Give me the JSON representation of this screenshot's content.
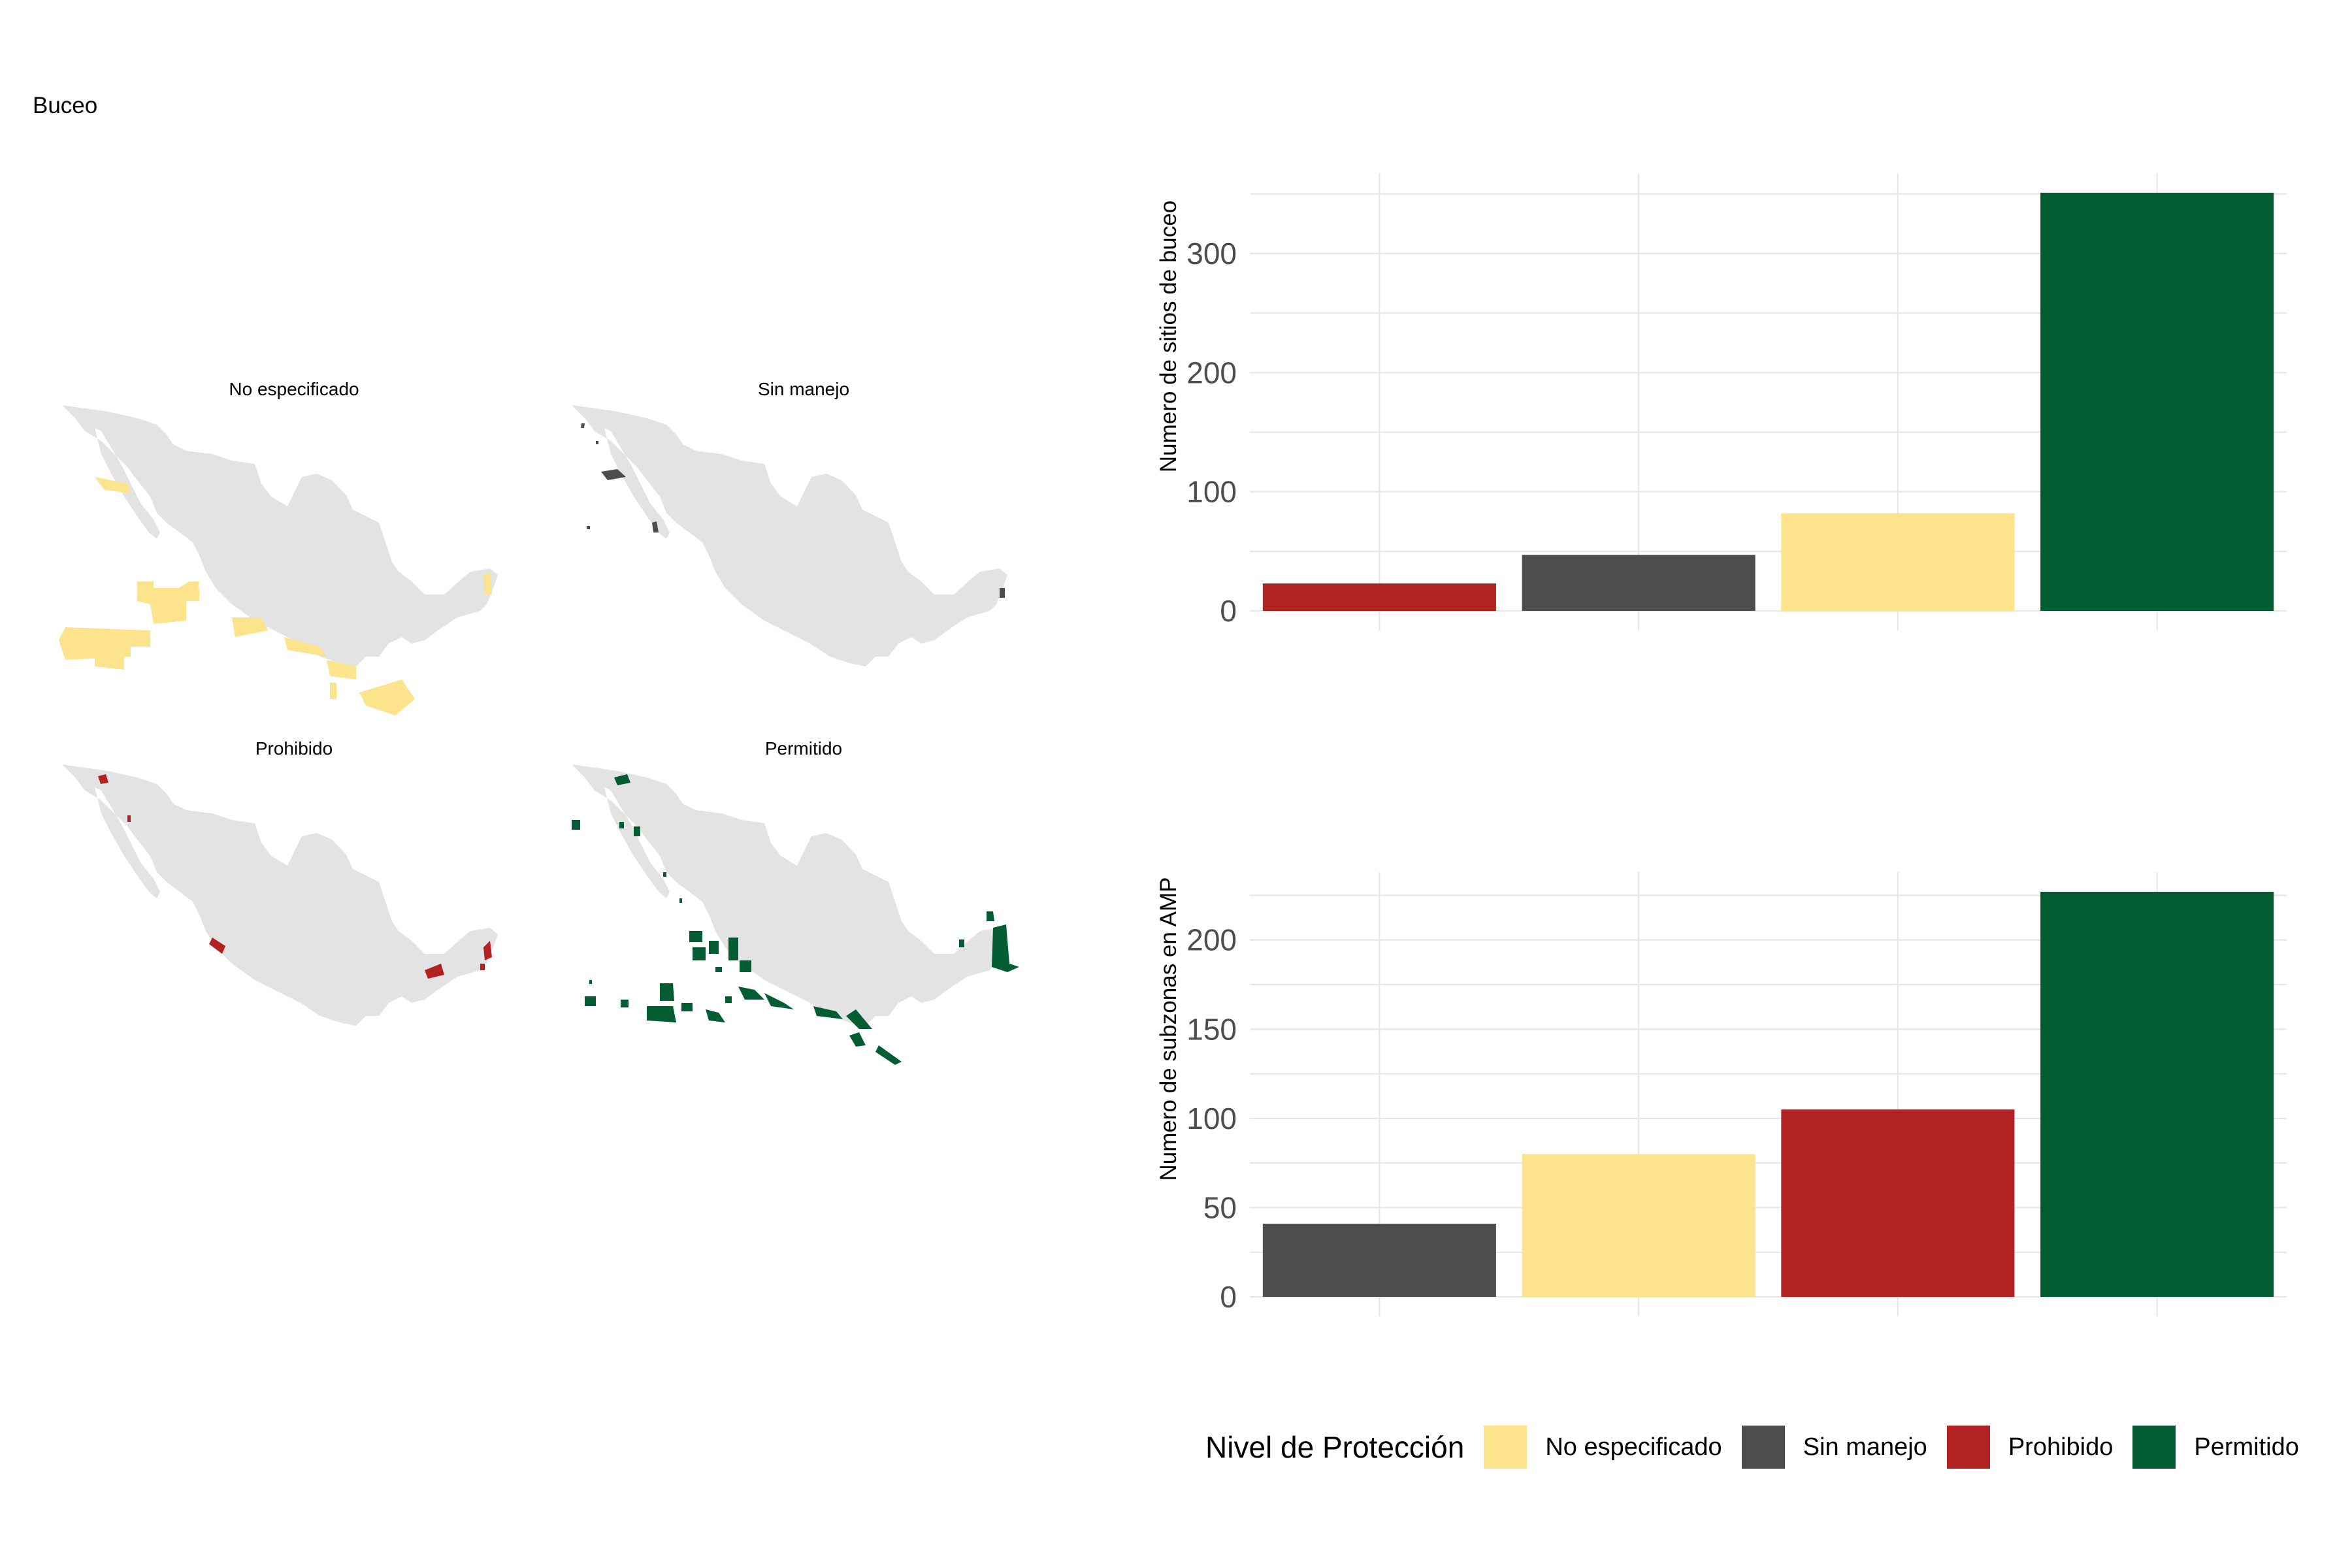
{
  "page": {
    "title": "Buceo"
  },
  "colors": {
    "No especificado": "#fde38c",
    "Sin manejo": "#4d4d4d",
    "Prohibido": "#b22222",
    "Permitido": "#035d33",
    "land": "#e3e3e3",
    "grid": "#e6e6e6"
  },
  "maps": {
    "panels": [
      {
        "label": "No especificado",
        "key": "No especificado"
      },
      {
        "label": "Sin manejo",
        "key": "Sin manejo"
      },
      {
        "label": "Prohibido",
        "key": "Prohibido"
      },
      {
        "label": "Permitido",
        "key": "Permitido"
      }
    ]
  },
  "chart_data": [
    {
      "type": "bar",
      "ylabel": "Numero de sitios de buceo",
      "xlabel": "",
      "categories": [
        "Prohibido",
        "Sin manejo",
        "No especificado",
        "Permitido"
      ],
      "values": [
        23,
        47,
        82,
        351
      ],
      "ylim": [
        0,
        351
      ],
      "yticks": [
        0,
        100,
        200,
        300
      ],
      "grid": true
    },
    {
      "type": "bar",
      "ylabel": "Numero de subzonas en AMP",
      "xlabel": "",
      "categories": [
        "Sin manejo",
        "No especificado",
        "Prohibido",
        "Permitido"
      ],
      "values": [
        41,
        80,
        105,
        227
      ],
      "ylim": [
        0,
        227
      ],
      "yticks": [
        0,
        50,
        100,
        150,
        200
      ],
      "grid": true
    }
  ],
  "legend": {
    "title": "Nivel de Protección",
    "items": [
      "No especificado",
      "Sin manejo",
      "Prohibido",
      "Permitido"
    ]
  }
}
